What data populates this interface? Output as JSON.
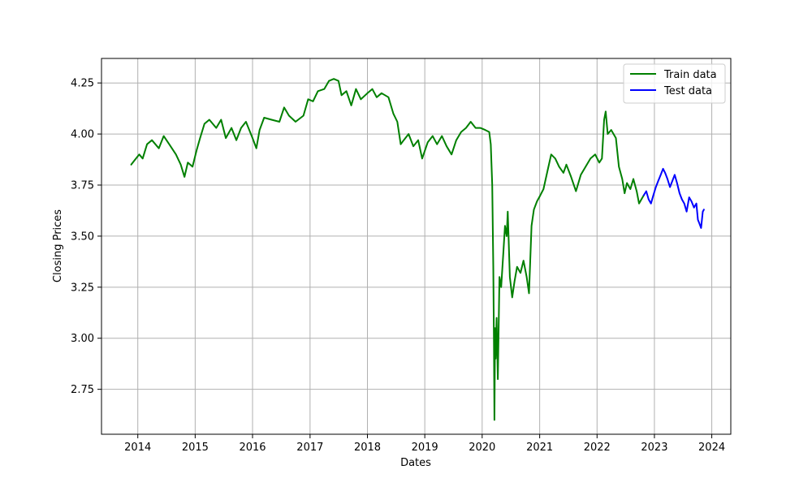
{
  "chart_data": {
    "type": "line",
    "title": "",
    "xlabel": "Dates",
    "ylabel": "Closing Prices",
    "xlim": [
      "2013-05-15",
      "2024-05-01"
    ],
    "ylim": [
      2.53,
      4.37
    ],
    "x_ticks": [
      "2014",
      "2015",
      "2016",
      "2017",
      "2018",
      "2019",
      "2020",
      "2021",
      "2022",
      "2023",
      "2024"
    ],
    "y_ticks": [
      "2.75",
      "3.00",
      "3.25",
      "3.50",
      "3.75",
      "4.00",
      "4.25"
    ],
    "grid": true,
    "legend_position": "top-right",
    "series": [
      {
        "name": "Train data",
        "color": "#008000",
        "points": [
          [
            "2013-11-20",
            3.85
          ],
          [
            "2013-12-10",
            3.87
          ],
          [
            "2014-01-10",
            3.9
          ],
          [
            "2014-02-01",
            3.88
          ],
          [
            "2014-03-01",
            3.95
          ],
          [
            "2014-04-01",
            3.97
          ],
          [
            "2014-05-15",
            3.93
          ],
          [
            "2014-06-15",
            3.99
          ],
          [
            "2014-07-20",
            3.95
          ],
          [
            "2014-09-01",
            3.9
          ],
          [
            "2014-10-01",
            3.85
          ],
          [
            "2014-10-25",
            3.79
          ],
          [
            "2014-11-15",
            3.86
          ],
          [
            "2014-12-15",
            3.84
          ],
          [
            "2015-01-10",
            3.92
          ],
          [
            "2015-02-01",
            3.98
          ],
          [
            "2015-03-01",
            4.05
          ],
          [
            "2015-04-01",
            4.07
          ],
          [
            "2015-05-15",
            4.03
          ],
          [
            "2015-06-15",
            4.07
          ],
          [
            "2015-07-15",
            3.98
          ],
          [
            "2015-08-20",
            4.03
          ],
          [
            "2015-09-20",
            3.97
          ],
          [
            "2015-10-20",
            4.03
          ],
          [
            "2015-11-20",
            4.06
          ],
          [
            "2016-01-01",
            3.98
          ],
          [
            "2016-01-25",
            3.93
          ],
          [
            "2016-02-15",
            4.02
          ],
          [
            "2016-03-15",
            4.08
          ],
          [
            "2016-05-01",
            4.07
          ],
          [
            "2016-06-20",
            4.06
          ],
          [
            "2016-07-20",
            4.13
          ],
          [
            "2016-08-20",
            4.09
          ],
          [
            "2016-10-01",
            4.06
          ],
          [
            "2016-11-20",
            4.09
          ],
          [
            "2016-12-20",
            4.17
          ],
          [
            "2017-01-20",
            4.16
          ],
          [
            "2017-02-20",
            4.21
          ],
          [
            "2017-04-01",
            4.22
          ],
          [
            "2017-05-01",
            4.26
          ],
          [
            "2017-06-01",
            4.27
          ],
          [
            "2017-07-01",
            4.26
          ],
          [
            "2017-07-20",
            4.19
          ],
          [
            "2017-08-20",
            4.21
          ],
          [
            "2017-09-20",
            4.14
          ],
          [
            "2017-10-20",
            4.22
          ],
          [
            "2017-11-20",
            4.17
          ],
          [
            "2018-01-01",
            4.2
          ],
          [
            "2018-02-01",
            4.22
          ],
          [
            "2018-03-01",
            4.18
          ],
          [
            "2018-04-01",
            4.2
          ],
          [
            "2018-05-15",
            4.18
          ],
          [
            "2018-06-15",
            4.1
          ],
          [
            "2018-07-10",
            4.06
          ],
          [
            "2018-08-01",
            3.95
          ],
          [
            "2018-08-20",
            3.97
          ],
          [
            "2018-09-20",
            4.0
          ],
          [
            "2018-10-20",
            3.94
          ],
          [
            "2018-11-20",
            3.97
          ],
          [
            "2018-12-15",
            3.88
          ],
          [
            "2019-01-20",
            3.96
          ],
          [
            "2019-02-20",
            3.99
          ],
          [
            "2019-03-20",
            3.95
          ],
          [
            "2019-04-20",
            3.99
          ],
          [
            "2019-05-20",
            3.94
          ],
          [
            "2019-06-20",
            3.9
          ],
          [
            "2019-07-20",
            3.97
          ],
          [
            "2019-08-20",
            4.01
          ],
          [
            "2019-09-20",
            4.03
          ],
          [
            "2019-10-20",
            4.06
          ],
          [
            "2019-11-20",
            4.03
          ],
          [
            "2019-12-20",
            4.03
          ],
          [
            "2020-01-20",
            4.02
          ],
          [
            "2020-02-15",
            4.01
          ],
          [
            "2020-02-25",
            3.95
          ],
          [
            "2020-03-05",
            3.75
          ],
          [
            "2020-03-12",
            3.35
          ],
          [
            "2020-03-16",
            2.98
          ],
          [
            "2020-03-19",
            2.6
          ],
          [
            "2020-03-23",
            3.05
          ],
          [
            "2020-03-27",
            2.9
          ],
          [
            "2020-04-02",
            3.1
          ],
          [
            "2020-04-10",
            2.8
          ],
          [
            "2020-04-20",
            3.3
          ],
          [
            "2020-05-01",
            3.25
          ],
          [
            "2020-05-15",
            3.42
          ],
          [
            "2020-05-25",
            3.55
          ],
          [
            "2020-06-05",
            3.5
          ],
          [
            "2020-06-12",
            3.62
          ],
          [
            "2020-06-25",
            3.3
          ],
          [
            "2020-07-10",
            3.2
          ],
          [
            "2020-07-25",
            3.28
          ],
          [
            "2020-08-10",
            3.35
          ],
          [
            "2020-09-01",
            3.32
          ],
          [
            "2020-09-20",
            3.38
          ],
          [
            "2020-10-10",
            3.3
          ],
          [
            "2020-10-25",
            3.22
          ],
          [
            "2020-11-10",
            3.55
          ],
          [
            "2020-11-25",
            3.63
          ],
          [
            "2020-12-15",
            3.67
          ],
          [
            "2021-01-05",
            3.7
          ],
          [
            "2021-01-25",
            3.73
          ],
          [
            "2021-02-20",
            3.82
          ],
          [
            "2021-03-15",
            3.9
          ],
          [
            "2021-04-10",
            3.88
          ],
          [
            "2021-05-05",
            3.84
          ],
          [
            "2021-06-01",
            3.81
          ],
          [
            "2021-06-20",
            3.85
          ],
          [
            "2021-07-20",
            3.79
          ],
          [
            "2021-08-20",
            3.72
          ],
          [
            "2021-09-20",
            3.8
          ],
          [
            "2021-10-20",
            3.84
          ],
          [
            "2021-11-20",
            3.88
          ],
          [
            "2021-12-20",
            3.9
          ],
          [
            "2022-01-15",
            3.86
          ],
          [
            "2022-02-01",
            3.88
          ],
          [
            "2022-02-15",
            4.07
          ],
          [
            "2022-02-25",
            4.11
          ],
          [
            "2022-03-10",
            4.0
          ],
          [
            "2022-04-01",
            4.02
          ],
          [
            "2022-05-01",
            3.98
          ],
          [
            "2022-05-20",
            3.84
          ],
          [
            "2022-06-10",
            3.78
          ],
          [
            "2022-06-25",
            3.71
          ],
          [
            "2022-07-10",
            3.76
          ],
          [
            "2022-08-01",
            3.73
          ],
          [
            "2022-08-20",
            3.78
          ],
          [
            "2022-09-10",
            3.72
          ],
          [
            "2022-09-25",
            3.66
          ],
          [
            "2022-10-10",
            3.68
          ],
          [
            "2022-10-25",
            3.7
          ]
        ]
      },
      {
        "name": "Test data",
        "color": "#0000ff",
        "points": [
          [
            "2022-10-25",
            3.7
          ],
          [
            "2022-11-10",
            3.72
          ],
          [
            "2022-11-25",
            3.68
          ],
          [
            "2022-12-10",
            3.66
          ],
          [
            "2022-12-25",
            3.7
          ],
          [
            "2023-01-10",
            3.74
          ],
          [
            "2023-01-25",
            3.77
          ],
          [
            "2023-02-10",
            3.8
          ],
          [
            "2023-02-25",
            3.83
          ],
          [
            "2023-03-10",
            3.81
          ],
          [
            "2023-03-25",
            3.78
          ],
          [
            "2023-04-10",
            3.74
          ],
          [
            "2023-04-25",
            3.77
          ],
          [
            "2023-05-10",
            3.8
          ],
          [
            "2023-05-25",
            3.76
          ],
          [
            "2023-06-10",
            3.71
          ],
          [
            "2023-06-25",
            3.68
          ],
          [
            "2023-07-10",
            3.66
          ],
          [
            "2023-07-25",
            3.62
          ],
          [
            "2023-08-10",
            3.69
          ],
          [
            "2023-08-25",
            3.67
          ],
          [
            "2023-09-10",
            3.64
          ],
          [
            "2023-09-25",
            3.66
          ],
          [
            "2023-10-05",
            3.58
          ],
          [
            "2023-10-15",
            3.56
          ],
          [
            "2023-10-25",
            3.54
          ],
          [
            "2023-11-05",
            3.62
          ],
          [
            "2023-11-12",
            3.63
          ]
        ]
      }
    ]
  }
}
